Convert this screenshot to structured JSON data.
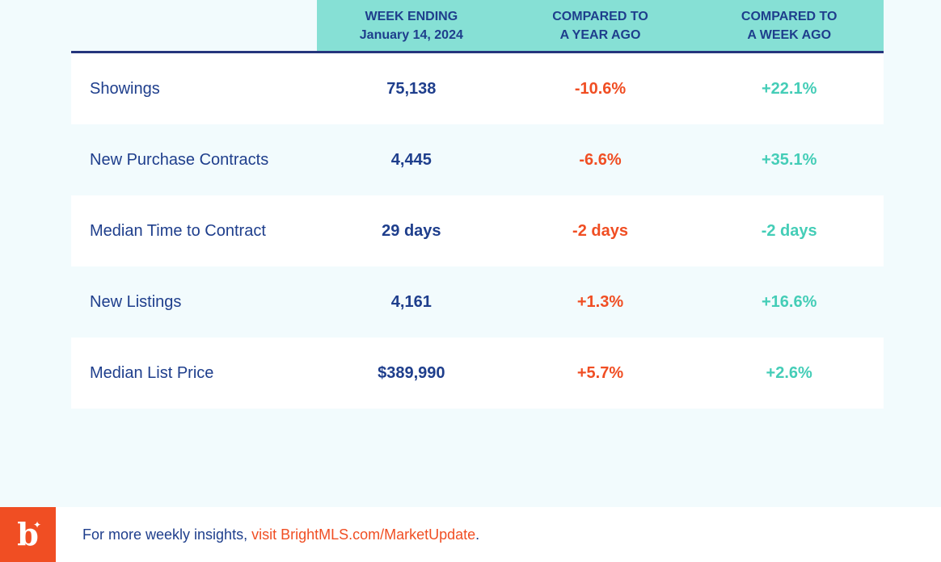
{
  "headers": {
    "week": [
      "WEEK ENDING",
      "January 14, 2024"
    ],
    "year": [
      "COMPARED TO",
      "A YEAR AGO"
    ],
    "weekago": [
      "COMPARED TO",
      "A WEEK AGO"
    ]
  },
  "rows": [
    {
      "label": "Showings",
      "week": "75,138",
      "year": "-10.6%",
      "weekago": "+22.1%"
    },
    {
      "label": "New Purchase Contracts",
      "week": "4,445",
      "year": "-6.6%",
      "weekago": "+35.1%"
    },
    {
      "label": "Median Time to Contract",
      "week": "29 days",
      "year": "-2 days",
      "weekago": "-2 days"
    },
    {
      "label": "New Listings",
      "week": "4,161",
      "year": "+1.3%",
      "weekago": "+16.6%"
    },
    {
      "label": "Median List Price",
      "week": "$389,990",
      "year": "+5.7%",
      "weekago": "+2.6%"
    }
  ],
  "footer": {
    "text": "For more weekly insights, ",
    "link": "visit BrightMLS.com/MarketUpdate",
    "end": ".",
    "logo_letter": "b",
    "logo_icon": "sparkle-icon"
  },
  "colors": {
    "navy": "#1e3e8c",
    "orange": "#f04e23",
    "teal": "#44cdb7",
    "header_bg": "#86e0d5"
  }
}
